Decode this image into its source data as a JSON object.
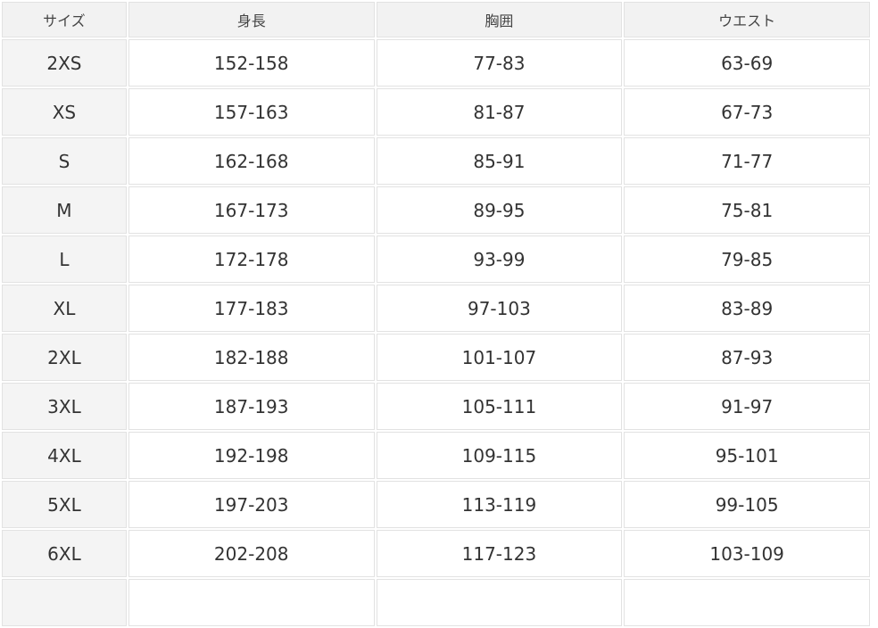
{
  "table": {
    "headers": [
      "サイズ",
      "身長",
      "胸囲",
      "ウエスト"
    ],
    "rows": [
      [
        "2XS",
        "152-158",
        "77-83",
        "63-69"
      ],
      [
        "XS",
        "157-163",
        "81-87",
        "67-73"
      ],
      [
        "S",
        "162-168",
        "85-91",
        "71-77"
      ],
      [
        "M",
        "167-173",
        "89-95",
        "75-81"
      ],
      [
        "L",
        "172-178",
        "93-99",
        "79-85"
      ],
      [
        "XL",
        "177-183",
        "97-103",
        "83-89"
      ],
      [
        "2XL",
        "182-188",
        "101-107",
        "87-93"
      ],
      [
        "3XL",
        "187-193",
        "105-111",
        "91-97"
      ],
      [
        "4XL",
        "192-198",
        "109-115",
        "95-101"
      ],
      [
        "5XL",
        "197-203",
        "113-119",
        "99-105"
      ],
      [
        "6XL",
        "202-208",
        "117-123",
        "103-109"
      ],
      [
        "",
        "",
        "",
        ""
      ]
    ]
  }
}
